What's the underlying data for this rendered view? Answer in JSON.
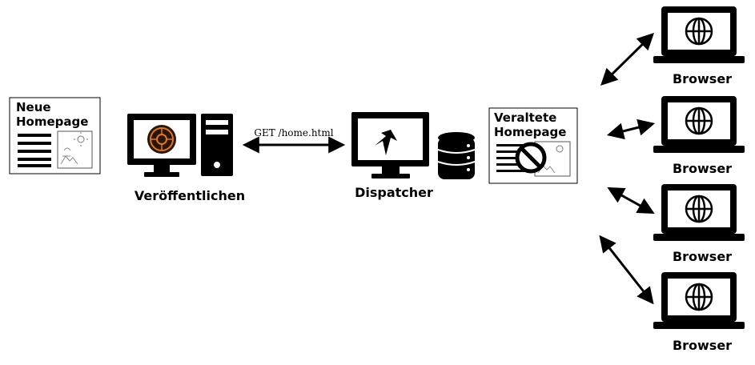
{
  "new_page": {
    "title_line1": "Neue",
    "title_line2": "Homepage"
  },
  "publish": {
    "label": "Veröffentlichen"
  },
  "request": {
    "label": "GET /home.html"
  },
  "dispatcher": {
    "label": "Dispatcher"
  },
  "stale_page": {
    "title_line1": "Veraltete",
    "title_line2": "Homepage"
  },
  "browsers": [
    {
      "label": "Browser"
    },
    {
      "label": "Browser"
    },
    {
      "label": "Browser"
    },
    {
      "label": "Browser"
    }
  ],
  "colors": {
    "line": "#000000",
    "aem_logo_bg": "#2a1608",
    "aem_logo_ring": "#e0761e"
  },
  "icons": {
    "publish": "desktop-with-tower-icon",
    "dispatcher": "desktop-icon",
    "cache": "database-icon",
    "browser": "laptop-globe-icon",
    "stale": "prohibited-icon",
    "image": "image-thumbnail-icon"
  }
}
